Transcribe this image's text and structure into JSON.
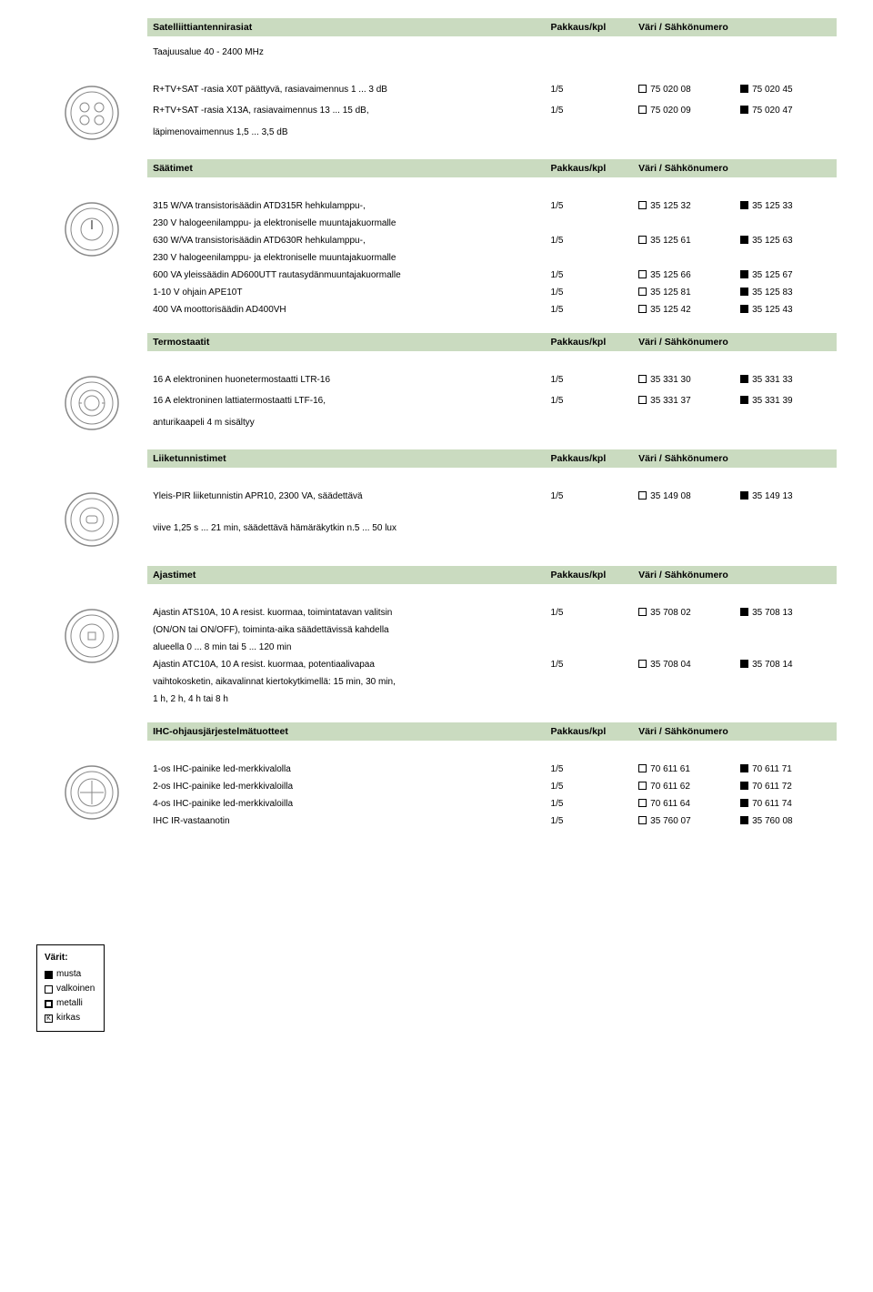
{
  "headers": {
    "pack": "Pakkaus/kpl",
    "color": "Väri / Sähkönumero"
  },
  "sections": [
    {
      "title": "Satelliittiantennirasiat",
      "subtitle": "Taajuusalue 40 - 2400 MHz",
      "icon": "sat",
      "rows": [
        {
          "desc": "R+TV+SAT -rasia X0T päättyvä, rasiavaimennus 1 ... 3 dB",
          "pack": "1/5",
          "c1": "75 020 08",
          "c2": "75 020 45"
        },
        {
          "desc": "R+TV+SAT -rasia X13A, rasiavaimennus 13 ... 15 dB,",
          "pack": "1/5",
          "c1": "75 020 09",
          "c2": "75 020 47"
        },
        {
          "desc": "läpimenovaimennus 1,5 ... 3,5 dB",
          "indent": true,
          "pack": "",
          "c1": "",
          "c2": ""
        }
      ]
    },
    {
      "title": "Säätimet",
      "icon": "dial",
      "rows": [
        {
          "desc": "315 W/VA transistorisäädin ATD315R hehkulamppu-,",
          "pack": "1/5",
          "c1": "35 125 32",
          "c2": "35 125 33"
        },
        {
          "desc": "230 V halogeenilamppu- ja elektroniselle muuntajakuormalle",
          "indent": true
        },
        {
          "desc": "630 W/VA transistorisäädin ATD630R hehkulamppu-,",
          "pack": "1/5",
          "c1": "35 125 61",
          "c2": "35 125 63"
        },
        {
          "desc": "230 V halogeenilamppu- ja elektroniselle muuntajakuormalle",
          "indent": true
        },
        {
          "desc": "600 VA yleissäädin AD600UTT rautasydänmuuntajakuormalle",
          "pack": "1/5",
          "c1": "35 125 66",
          "c2": "35 125 67"
        },
        {
          "desc": "1-10 V ohjain APE10T",
          "pack": "1/5",
          "c1": "35 125 81",
          "c2": "35 125 83"
        },
        {
          "desc": "400 VA moottorisäädin AD400VH",
          "pack": "1/5",
          "c1": "35 125 42",
          "c2": "35 125 43"
        }
      ]
    },
    {
      "title": "Termostaatit",
      "icon": "thermo",
      "rows": [
        {
          "desc": "16 A elektroninen huonetermostaatti LTR-16",
          "pack": "1/5",
          "c1": "35 331 30",
          "c2": "35 331 33"
        },
        {
          "desc": "16 A elektroninen lattiatermostaatti LTF-16,",
          "pack": "1/5",
          "c1": "35 331 37",
          "c2": "35 331 39"
        },
        {
          "desc": "anturikaapeli 4 m sisältyy",
          "indent": true
        }
      ]
    },
    {
      "title": "Liiketunnistimet",
      "icon": "pir",
      "rows": [
        {
          "desc": "Yleis-PIR liiketunnistin APR10, 2300 VA, säädettävä",
          "pack": "1/5",
          "c1": "35 149 08",
          "c2": "35 149 13"
        },
        {
          "desc": "viive 1,25 s ... 21 min, säädettävä hämäräkytkin n.5 ... 50 lux",
          "indent": true
        }
      ]
    },
    {
      "title": "Ajastimet",
      "icon": "timer",
      "rows": [
        {
          "desc": "Ajastin ATS10A, 10 A resist. kuormaa, toimintatavan valitsin",
          "pack": "1/5",
          "c1": "35 708 02",
          "c2": "35 708 13"
        },
        {
          "desc": "(ON/ON tai ON/OFF), toiminta-aika säädettävissä kahdella",
          "indent": true
        },
        {
          "desc": "alueella 0 ... 8 min tai 5 ... 120 min",
          "indent": true
        },
        {
          "desc": "Ajastin ATC10A, 10 A resist. kuormaa, potentiaalivapaa",
          "pack": "1/5",
          "c1": "35 708 04",
          "c2": "35 708 14"
        },
        {
          "desc": "vaihtokosketin, aikavalinnat kiertokytkimellä: 15 min, 30 min,",
          "indent": true
        },
        {
          "desc": "1 h, 2 h, 4 h tai 8 h",
          "indent": true
        }
      ]
    },
    {
      "title": "IHC-ohjausjärjestelmätuotteet",
      "icon": "ihc",
      "rows": [
        {
          "desc": "1-os IHC-painike led-merkkivalolla",
          "pack": "1/5",
          "c1": "70 611 61",
          "c2": "70 611 71"
        },
        {
          "desc": "2-os IHC-painike led-merkkivaloilla",
          "pack": "1/5",
          "c1": "70 611 62",
          "c2": "70 611 72"
        },
        {
          "desc": "4-os IHC-painike led-merkkivaloilla",
          "pack": "1/5",
          "c1": "70 611 64",
          "c2": "70 611 74"
        },
        {
          "desc": "IHC IR-vastaanotin",
          "pack": "1/5",
          "c1": "35 760 07",
          "c2": "35 760 08"
        }
      ]
    }
  ],
  "legend": {
    "title": "Värit:",
    "items": [
      {
        "sym": "black",
        "label": "musta"
      },
      {
        "sym": "white",
        "label": "valkoinen"
      },
      {
        "sym": "metal",
        "label": "metalli"
      },
      {
        "sym": "k",
        "label": "kirkas"
      }
    ]
  },
  "colors": {
    "header_bg": "#cadbc0"
  }
}
